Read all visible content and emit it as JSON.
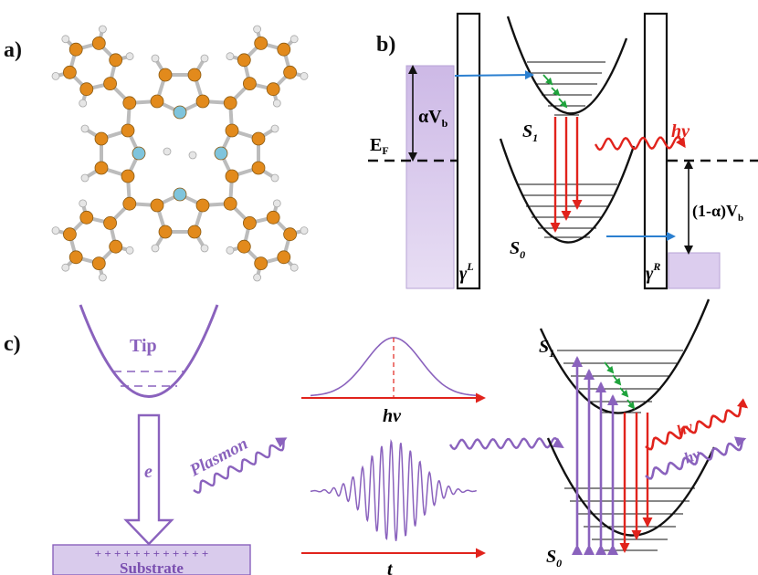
{
  "panels": {
    "a": {
      "label": "a)"
    },
    "b": {
      "label": "b)",
      "fermi_label": "E",
      "fermi_sub": "F",
      "alpha_vb_label": "αV",
      "alpha_vb_sub": "b",
      "one_minus_alpha_label": "(1-α)V",
      "one_minus_alpha_sub": "b",
      "gamma_left": "γ",
      "gamma_left_sup": "L",
      "gamma_right": "γ",
      "gamma_right_sup": "R",
      "state_s1": "S",
      "state_s1_sub": "1",
      "state_s0": "S",
      "state_s0_sub": "0",
      "photon_label": "hν"
    },
    "c": {
      "label": "c)",
      "tip_label": "Tip",
      "electron_label": "e",
      "plasmon_label": "Plasmon",
      "substrate_label": "Substrate",
      "substrate_charges": "+ + + + + + + + + + + +",
      "spectrum_axis_label": "hν",
      "time_axis_label": "t",
      "state_s1": "S",
      "state_s1_sub": "1",
      "state_s0": "S",
      "state_s0_sub": "0",
      "photon_red_label": "hν",
      "photon_purple_label": "hν"
    }
  },
  "colors": {
    "atom_carbon": "#e28a1c",
    "atom_nitrogen": "#7fc4dc",
    "atom_hydrogen": "#e6e6e6",
    "bond": "#bcbcbc",
    "purple": "#8a62bd",
    "purple_fill": "#d6c6ea",
    "red": "#e1231c",
    "blue": "#2a7fd0",
    "green": "#1fa33c",
    "black": "#111111"
  }
}
